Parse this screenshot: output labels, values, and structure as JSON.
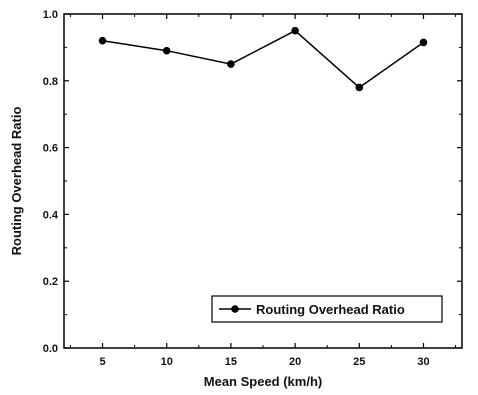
{
  "chart_data": {
    "type": "line",
    "title": "",
    "xlabel": "Mean Speed (km/h)",
    "ylabel": "Routing Overhead Ratio",
    "xlim": [
      2,
      33
    ],
    "ylim": [
      0.0,
      1.0
    ],
    "x_ticks": [
      5,
      10,
      15,
      20,
      25,
      30
    ],
    "x_tick_labels": [
      "5",
      "10",
      "15",
      "20",
      "25",
      "30"
    ],
    "y_ticks": [
      0.0,
      0.2,
      0.4,
      0.6,
      0.8,
      1.0
    ],
    "y_tick_labels": [
      "0.0",
      "0.2",
      "0.4",
      "0.6",
      "0.8",
      "1.0"
    ],
    "grid": false,
    "legend_position": "bottom-right",
    "series": [
      {
        "name": "Routing Overhead Ratio",
        "color": "#000000",
        "marker": "circle",
        "x": [
          5,
          10,
          15,
          20,
          25,
          30
        ],
        "values": [
          0.92,
          0.89,
          0.85,
          0.95,
          0.78,
          0.915
        ]
      }
    ]
  }
}
